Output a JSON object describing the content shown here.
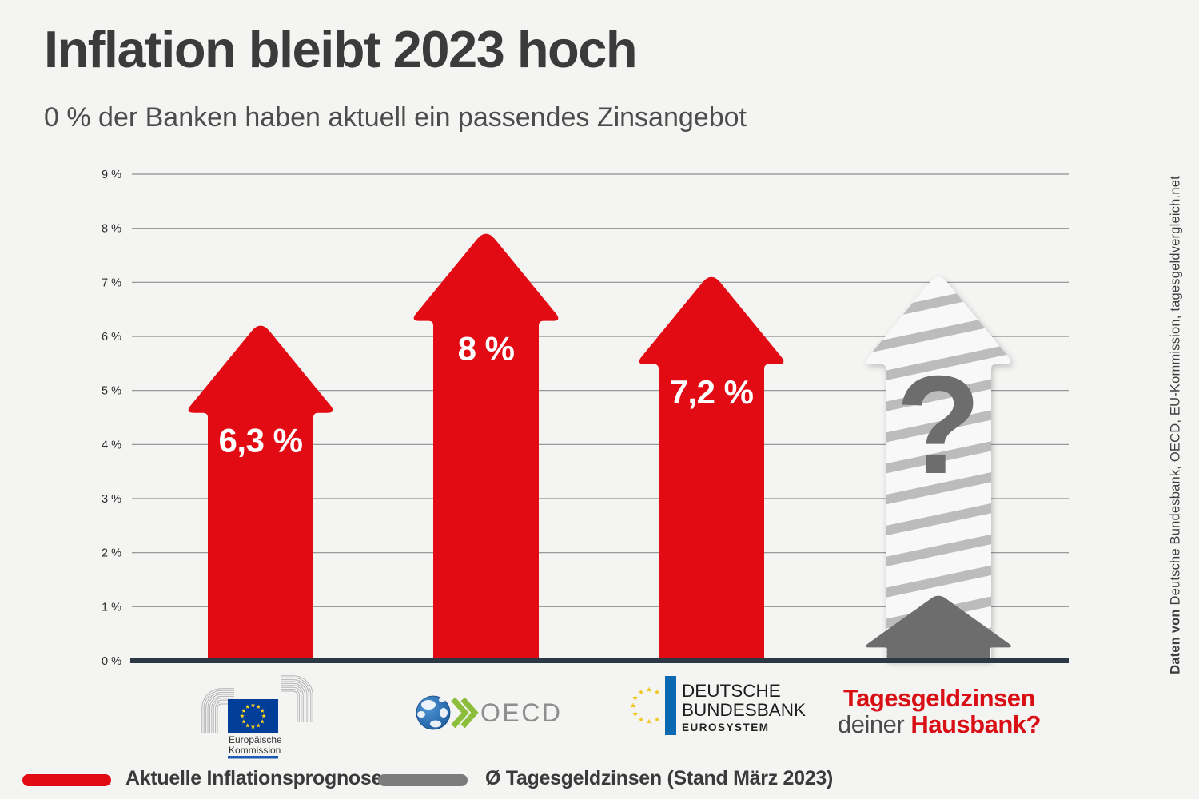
{
  "header": {
    "title": "Inflation bleibt 2023 hoch",
    "subtitle": "0 % der Banken haben aktuell ein passendes Zinsangebot"
  },
  "chart_data": {
    "type": "bar",
    "title": "Inflation bleibt 2023 hoch",
    "categories": [
      "EU-Kommission",
      "OECD",
      "Deutsche Bundesbank",
      "Tagesgeldzinsen deiner Hausbank"
    ],
    "series": [
      {
        "name": "Aktuelle Inflationsprognose",
        "color": "#e20a13",
        "values": [
          6.3,
          8,
          7.2,
          null
        ],
        "value_labels": [
          "6,3 %",
          "8 %",
          "7,2 %",
          null
        ]
      },
      {
        "name": "Ø Tagesgeldzinsen (Stand März 2023)",
        "color": "#6d6d6d",
        "values": [
          null,
          null,
          null,
          1.25
        ],
        "value_labels": [
          null,
          null,
          null,
          null
        ]
      }
    ],
    "unknown_arrow": {
      "category_index": 3,
      "display_height": 7.2,
      "label": "?",
      "style": "striped"
    },
    "ylim": [
      0,
      9
    ],
    "yticks": [
      "0 %",
      "1 %",
      "2 %",
      "3 %",
      "4 %",
      "5 %",
      "6 %",
      "7 %",
      "8 %",
      "9 %"
    ],
    "grid": true,
    "legend_position": "bottom"
  },
  "legend": {
    "items": [
      {
        "label": "Aktuelle Inflationsprognose",
        "color": "#e20a13"
      },
      {
        "label": "Ø Tagesgeldzinsen (Stand März 2023)",
        "color": "#7b7b7b"
      }
    ]
  },
  "logos": {
    "eu": {
      "line1": "Europäische",
      "line2": "Kommission"
    },
    "oecd": {
      "text": "OECD"
    },
    "bundesbank": {
      "line1": "DEUTSCHE",
      "line2": "BUNDESBANK",
      "line3": "EUROSYSTEM"
    }
  },
  "hausbank_label": {
    "line1": "Tagesgeldzinsen",
    "line2_part1": "deiner ",
    "line2_part2": "Hausbank?"
  },
  "source_note": {
    "bold": "Daten von",
    "rest": " Deutsche Bundesbank, OECD, EU-Kommission, tagesgeldvergleich.net"
  },
  "colors": {
    "red": "#e20a13",
    "dark_text": "#3b3b3b",
    "gray_arrow": "#6d6d6d",
    "stripe": "#bcbcbc",
    "stripe_bg": "#f8f8f8",
    "baseline": "#2c3945",
    "grid": "#8e8e8e",
    "background": "#f4f4f3",
    "white": "#ffffff"
  }
}
